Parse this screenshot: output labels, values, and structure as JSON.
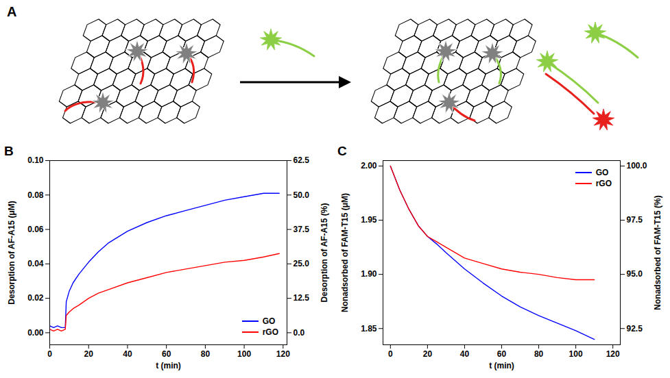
{
  "diagram": {
    "panel_label": "A"
  },
  "chart_data": [
    {
      "type": "line",
      "panel_label": "B",
      "x_label": "t (min)",
      "y_label": "Desorption of AF-A15 (μM)",
      "y2_label": "Desorption of AF-A15 (%)",
      "xlim": [
        0,
        122
      ],
      "xticks": [
        0,
        20,
        40,
        60,
        80,
        100,
        120
      ],
      "ylim": [
        -0.007,
        0.1
      ],
      "yticks": [
        {
          "value": 0,
          "label": "0.00"
        },
        {
          "value": 0.02,
          "label": "0.02"
        },
        {
          "value": 0.04,
          "label": "0.04"
        },
        {
          "value": 0.06,
          "label": "0.06"
        },
        {
          "value": 0.08,
          "label": "0.08"
        },
        {
          "value": 0.1,
          "label": "0.10"
        }
      ],
      "y2lim": [
        -4.375,
        62.5
      ],
      "y2ticks": [
        {
          "value": 0,
          "label": "0.0"
        },
        12.5,
        {
          "value": 25,
          "label": "25.0"
        },
        37.5,
        {
          "value": 50,
          "label": "50.0"
        },
        62.5
      ],
      "legend": "bottom-right",
      "x": [
        0,
        2,
        4,
        6,
        8,
        8.5,
        10,
        12,
        15,
        20,
        25,
        30,
        40,
        50,
        60,
        70,
        80,
        90,
        100,
        110,
        118
      ],
      "series": [
        {
          "name": "GO",
          "color": "#0000ff",
          "values": [
            0.004,
            0.003,
            0.004,
            0.003,
            0.003,
            0.018,
            0.024,
            0.029,
            0.034,
            0.041,
            0.047,
            0.052,
            0.059,
            0.064,
            0.068,
            0.071,
            0.074,
            0.077,
            0.079,
            0.081,
            0.081
          ]
        },
        {
          "name": "rGO",
          "color": "#ff0000",
          "values": [
            0.002,
            0.001,
            0.002,
            0.001,
            0.002,
            0.01,
            0.012,
            0.014,
            0.016,
            0.02,
            0.023,
            0.025,
            0.029,
            0.032,
            0.035,
            0.037,
            0.039,
            0.041,
            0.042,
            0.044,
            0.046
          ]
        }
      ]
    },
    {
      "type": "line",
      "panel_label": "C",
      "x_label": "t (min)",
      "y_label": "Nonadsorbed of FAM-T15 (μM)",
      "y2_label": "Nonadsorbed of FAM-T15 (%)",
      "xlim": [
        -4,
        124
      ],
      "xticks": [
        0,
        20,
        40,
        60,
        80,
        100,
        120
      ],
      "ylim": [
        1.835,
        2.005
      ],
      "yticks": [
        1.85,
        {
          "value": 1.9,
          "label": "1.90"
        },
        1.95,
        {
          "value": 2,
          "label": "2.00"
        }
      ],
      "y2lim": [
        91.75,
        100.25
      ],
      "y2ticks": [
        92.5,
        {
          "value": 95,
          "label": "95.0"
        },
        97.5,
        {
          "value": 100,
          "label": "100.0"
        }
      ],
      "legend": "top-right",
      "x": [
        0,
        5,
        10,
        15,
        20,
        25,
        30,
        40,
        50,
        60,
        70,
        80,
        90,
        100,
        110
      ],
      "series": [
        {
          "name": "GO",
          "color": "#0000ff",
          "values": [
            2.0,
            1.978,
            1.96,
            1.945,
            1.935,
            1.928,
            1.92,
            1.905,
            1.892,
            1.88,
            1.87,
            1.862,
            1.855,
            1.848,
            1.84
          ]
        },
        {
          "name": "rGO",
          "color": "#ff0000",
          "values": [
            2.0,
            1.978,
            1.96,
            1.945,
            1.935,
            1.93,
            1.925,
            1.915,
            1.91,
            1.905,
            1.902,
            1.9,
            1.897,
            1.895,
            1.895
          ]
        }
      ]
    }
  ]
}
